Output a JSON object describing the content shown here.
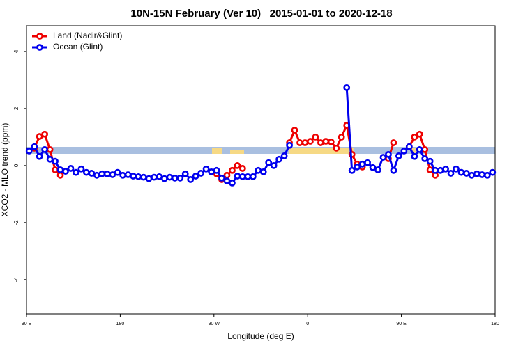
{
  "chart_data": {
    "type": "line",
    "title": "10N-15N February (Ver 10)   2015-01-01 to 2020-12-18",
    "x_label": "Longitude (deg E)",
    "y_label": "XCO2 - MLO trend (ppm)",
    "xlim": [
      90,
      540
    ],
    "xticks": [
      {
        "value": 90,
        "label": "90 E"
      },
      180,
      {
        "value": 270,
        "label": "90 W"
      },
      {
        "value": 360,
        "label": "0"
      },
      {
        "value": 450,
        "label": "90 E"
      },
      {
        "value": 540,
        "label": "180"
      }
    ],
    "ylim": [
      -5.2,
      4.9
    ],
    "yticks": [
      -4,
      -2,
      0,
      2,
      4
    ],
    "legend": "top-left",
    "x": [
      92.5,
      97.5,
      102.5,
      107.5,
      112.5,
      117.5,
      122.5,
      127.5,
      132.5,
      137.5,
      142.5,
      147.5,
      152.5,
      157.5,
      162.5,
      167.5,
      172.5,
      177.5,
      182.5,
      187.5,
      192.5,
      197.5,
      202.5,
      207.5,
      212.5,
      217.5,
      222.5,
      227.5,
      232.5,
      237.5,
      242.5,
      247.5,
      252.5,
      257.5,
      262.5,
      267.5,
      272.5,
      277.5,
      282.5,
      287.5,
      292.5,
      297.5,
      302.5,
      307.5,
      312.5,
      317.5,
      322.5,
      327.5,
      332.5,
      337.5,
      342.5,
      347.5,
      352.5,
      357.5,
      362.5,
      367.5,
      372.5,
      377.5,
      382.5,
      387.5,
      392.5,
      397.5,
      402.5,
      407.5,
      412.5,
      417.5,
      422.5,
      427.5,
      432.5,
      437.5,
      442.5,
      447.5,
      452.5,
      457.5,
      462.5,
      467.5,
      472.5,
      477.5,
      482.5,
      487.5,
      492.5,
      497.5,
      502.5,
      507.5,
      512.5,
      517.5,
      522.5,
      527.5,
      532.5,
      537.5
    ],
    "series": [
      {
        "name": "Land (Nadir&Glint)",
        "color": "#ee0000",
        "values": [
          null,
          0.61,
          1.02,
          1.1,
          0.56,
          -0.15,
          -0.34,
          null,
          null,
          null,
          null,
          null,
          null,
          null,
          null,
          null,
          null,
          null,
          null,
          null,
          null,
          null,
          null,
          null,
          null,
          null,
          null,
          null,
          null,
          null,
          null,
          null,
          null,
          null,
          null,
          null,
          -0.29,
          -0.49,
          -0.34,
          -0.17,
          0,
          -0.1,
          null,
          null,
          null,
          null,
          null,
          null,
          null,
          null,
          0.8,
          1.24,
          0.8,
          0.8,
          0.85,
          1.0,
          0.8,
          0.85,
          0.83,
          0.61,
          1.0,
          1.41,
          0.39,
          0.05,
          -0.05,
          null,
          null,
          null,
          null,
          0.24,
          0.8,
          null,
          null,
          0.66,
          1.0,
          1.1,
          0.56,
          -0.15,
          -0.34,
          null,
          null,
          null,
          null,
          null,
          null,
          null,
          null,
          null,
          null,
          null
        ]
      },
      {
        "name": "Ocean (Glint)",
        "color": "#0000ee",
        "values": [
          0.51,
          0.66,
          0.32,
          0.56,
          0.22,
          0.15,
          -0.15,
          -0.2,
          -0.1,
          -0.24,
          -0.12,
          -0.24,
          -0.27,
          -0.34,
          -0.29,
          -0.29,
          -0.32,
          -0.24,
          -0.34,
          -0.32,
          -0.37,
          -0.39,
          -0.41,
          -0.46,
          -0.41,
          -0.39,
          -0.46,
          -0.41,
          -0.44,
          -0.44,
          -0.29,
          -0.49,
          -0.37,
          -0.27,
          -0.12,
          -0.22,
          -0.17,
          -0.44,
          -0.54,
          -0.61,
          -0.37,
          -0.39,
          -0.39,
          -0.39,
          -0.17,
          -0.22,
          0.1,
          0,
          0.22,
          0.34,
          0.71,
          null,
          null,
          null,
          null,
          null,
          null,
          null,
          null,
          null,
          null,
          2.73,
          -0.17,
          -0.05,
          0.05,
          0.1,
          -0.07,
          -0.15,
          0.29,
          0.39,
          -0.17,
          0.34,
          0.51,
          0.66,
          0.32,
          0.56,
          0.24,
          0.15,
          -0.17,
          -0.17,
          -0.12,
          -0.27,
          -0.12,
          -0.24,
          -0.27,
          -0.34,
          -0.29,
          -0.32,
          -0.34,
          -0.24
        ]
      }
    ]
  }
}
